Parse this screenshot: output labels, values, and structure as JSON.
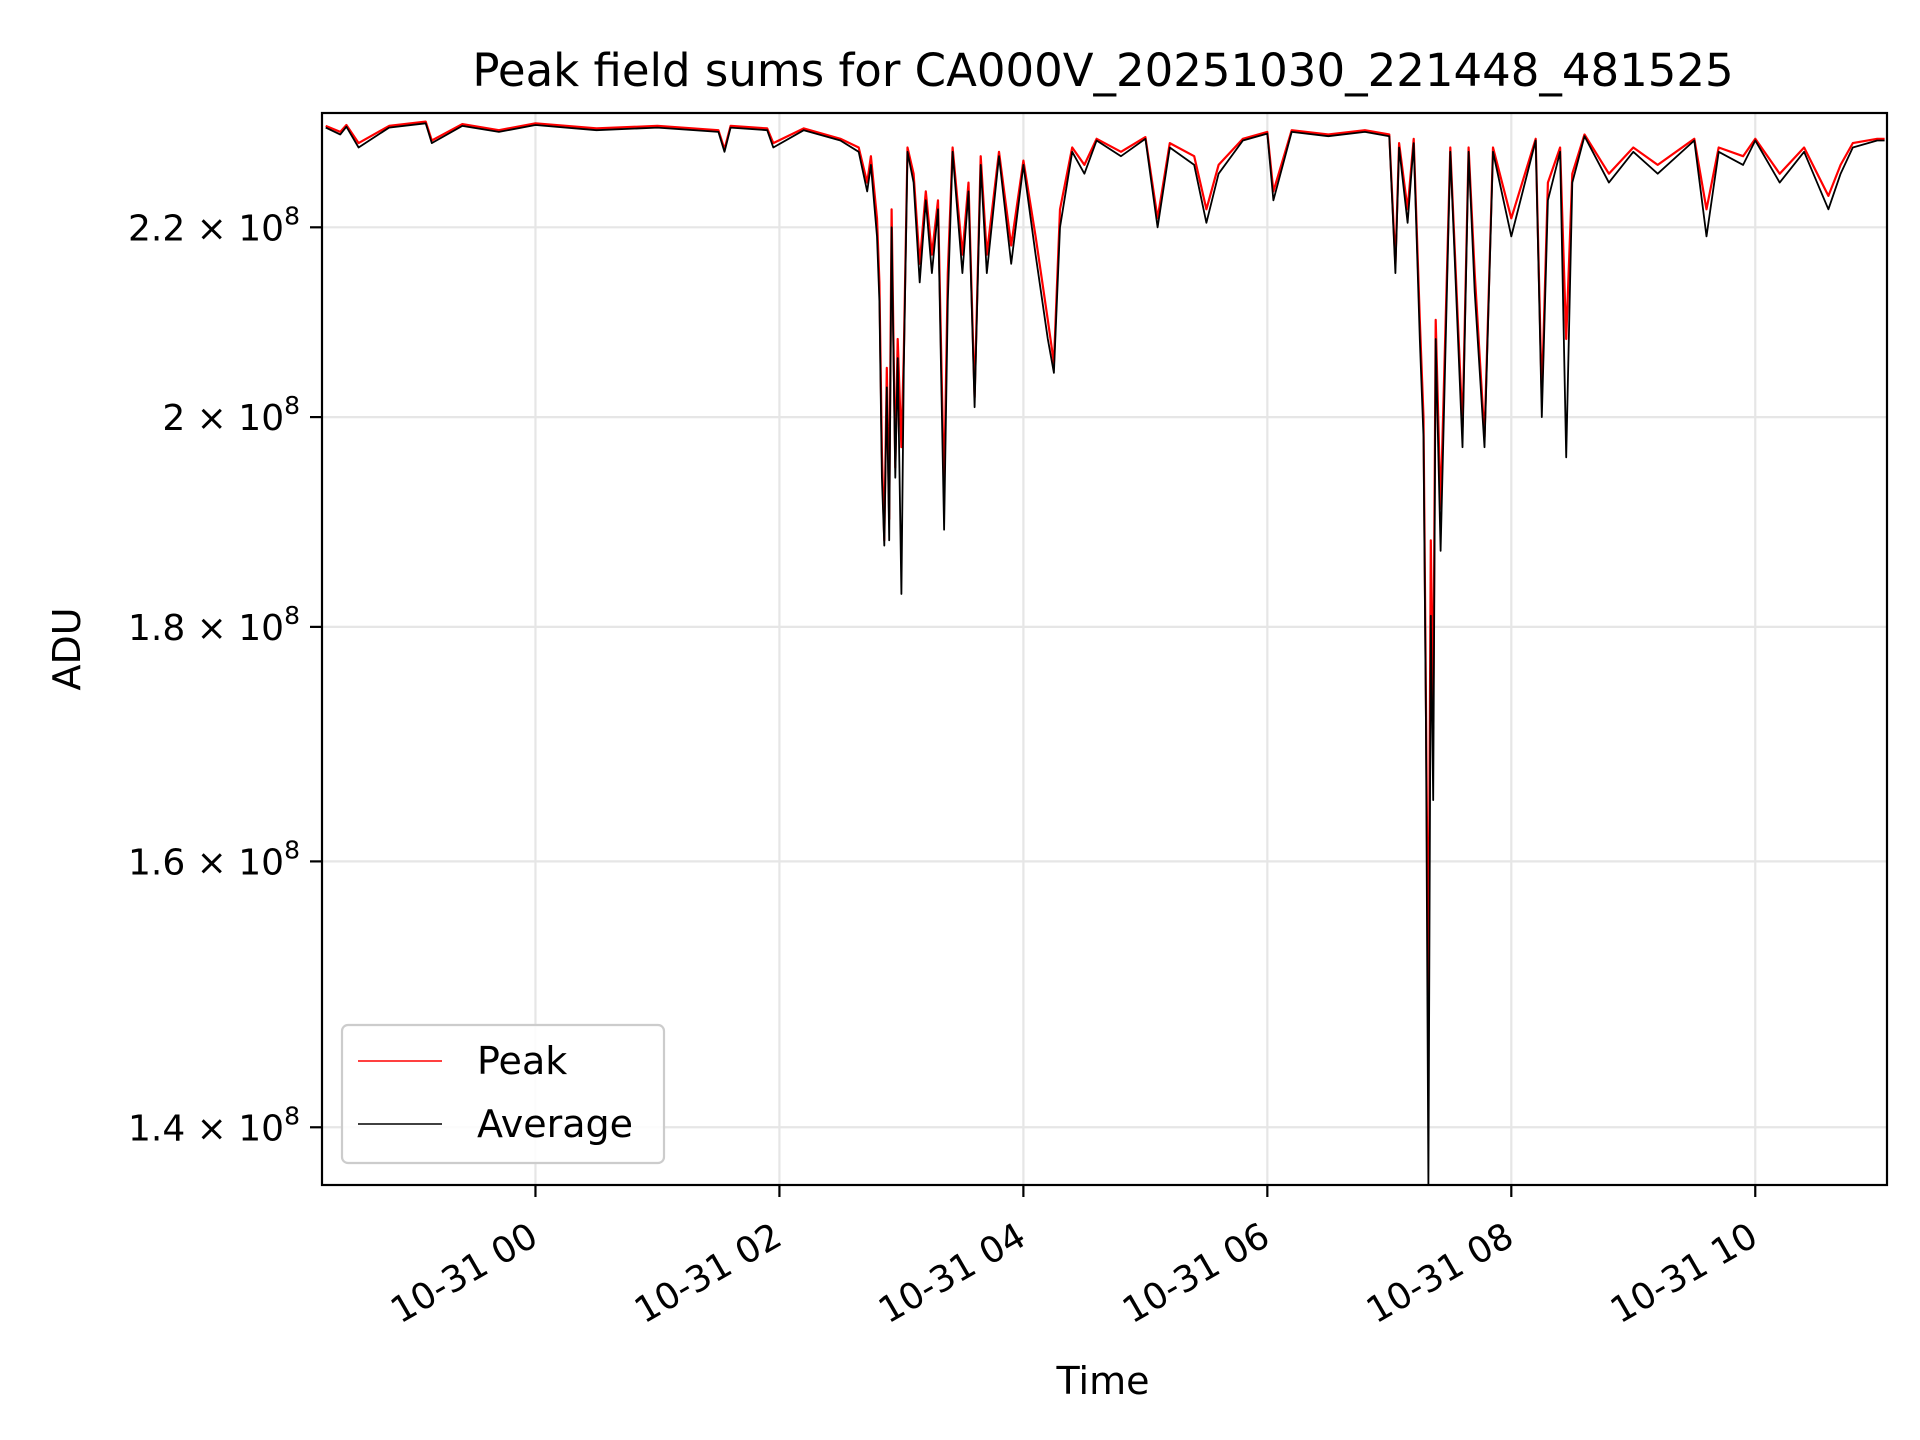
{
  "chart_data": {
    "type": "line",
    "title": "Peak field sums for CA000V_20251030_221448_481525",
    "xlabel": "Time",
    "ylabel": "ADU",
    "y_scale": "log",
    "xlim_hours": [
      -1.75,
      11.08
    ],
    "ylim": [
      136000000,
      233000000
    ],
    "grid": true,
    "legend_position": "lower-left",
    "x_ticks": [
      {
        "value_hours": 0,
        "label": "10-31 00"
      },
      {
        "value_hours": 2,
        "label": "10-31 02"
      },
      {
        "value_hours": 4,
        "label": "10-31 04"
      },
      {
        "value_hours": 6,
        "label": "10-31 06"
      },
      {
        "value_hours": 8,
        "label": "10-31 08"
      },
      {
        "value_hours": 10,
        "label": "10-31 10"
      }
    ],
    "y_ticks": [
      {
        "value": 140000000,
        "mantissa": "1.4",
        "exponent": "8"
      },
      {
        "value": 160000000,
        "mantissa": "1.6",
        "exponent": "8"
      },
      {
        "value": 180000000,
        "mantissa": "1.8",
        "exponent": "8"
      },
      {
        "value": 200000000,
        "mantissa": "2",
        "exponent": "8"
      },
      {
        "value": 220000000,
        "mantissa": "2.2",
        "exponent": "8"
      }
    ],
    "tick_times": "×",
    "tick_base": "10",
    "series": [
      {
        "name": "Peak",
        "color": "#ff0000",
        "x_hours": [
          -1.72,
          -1.6,
          -1.55,
          -1.45,
          -1.2,
          -0.9,
          -0.85,
          -0.6,
          -0.3,
          0,
          0.5,
          1.0,
          1.5,
          1.55,
          1.6,
          1.9,
          1.95,
          2.2,
          2.5,
          2.65,
          2.72,
          2.75,
          2.8,
          2.82,
          2.84,
          2.86,
          2.88,
          2.9,
          2.92,
          2.95,
          2.97,
          3.0,
          3.02,
          3.05,
          3.1,
          3.15,
          3.2,
          3.25,
          3.3,
          3.35,
          3.38,
          3.42,
          3.5,
          3.55,
          3.6,
          3.65,
          3.7,
          3.8,
          3.9,
          4.0,
          4.1,
          4.2,
          4.25,
          4.3,
          4.4,
          4.5,
          4.6,
          4.8,
          5.0,
          5.1,
          5.2,
          5.4,
          5.5,
          5.6,
          5.8,
          6.0,
          6.05,
          6.2,
          6.5,
          6.8,
          7.0,
          7.05,
          7.08,
          7.15,
          7.2,
          7.25,
          7.28,
          7.3,
          7.32,
          7.34,
          7.36,
          7.38,
          7.42,
          7.5,
          7.6,
          7.65,
          7.7,
          7.78,
          7.85,
          8.0,
          8.2,
          8.25,
          8.3,
          8.4,
          8.45,
          8.5,
          8.6,
          8.8,
          9.0,
          9.2,
          9.5,
          9.6,
          9.7,
          9.9,
          10.0,
          10.2,
          10.4,
          10.6,
          10.7,
          10.8,
          11.0,
          11.06
        ],
        "values": [
          231500000,
          230800000,
          231600000,
          229500000,
          231500000,
          232000000,
          229800000,
          231700000,
          231000000,
          231800000,
          231200000,
          231500000,
          231000000,
          228800000,
          231500000,
          231200000,
          229500000,
          231200000,
          230000000,
          229000000,
          225000000,
          228000000,
          221000000,
          214000000,
          196500000,
          188000000,
          205000000,
          190000000,
          222000000,
          195000000,
          208000000,
          197000000,
          206500000,
          229000000,
          226000000,
          216000000,
          224000000,
          217000000,
          223000000,
          192500000,
          215000000,
          229000000,
          217000000,
          225000000,
          202000000,
          228000000,
          217000000,
          228500000,
          218000000,
          227500000,
          219000000,
          210000000,
          205500000,
          222000000,
          229000000,
          227000000,
          230000000,
          228500000,
          230200000,
          221000000,
          229500000,
          228000000,
          222000000,
          227000000,
          230000000,
          230800000,
          224000000,
          231000000,
          230500000,
          231000000,
          230500000,
          216000000,
          229500000,
          222000000,
          230000000,
          210000000,
          200000000,
          174000000,
          149000000,
          188000000,
          172000000,
          210000000,
          191000000,
          229000000,
          199000000,
          229000000,
          215000000,
          198000000,
          229000000,
          221000000,
          230000000,
          202000000,
          225000000,
          229000000,
          208000000,
          226000000,
          230500000,
          226000000,
          229000000,
          227000000,
          230000000,
          222000000,
          229000000,
          228000000,
          230000000,
          226000000,
          229000000,
          223500000,
          227000000,
          229500000,
          230000000,
          230000000
        ]
      },
      {
        "name": "Average",
        "color": "#000000",
        "x_hours": [
          -1.72,
          -1.6,
          -1.55,
          -1.45,
          -1.2,
          -0.9,
          -0.85,
          -0.6,
          -0.3,
          0,
          0.5,
          1.0,
          1.5,
          1.55,
          1.6,
          1.9,
          1.95,
          2.2,
          2.5,
          2.65,
          2.72,
          2.75,
          2.8,
          2.82,
          2.84,
          2.86,
          2.88,
          2.9,
          2.92,
          2.95,
          2.97,
          3.0,
          3.02,
          3.05,
          3.1,
          3.15,
          3.2,
          3.25,
          3.3,
          3.35,
          3.38,
          3.42,
          3.5,
          3.55,
          3.6,
          3.65,
          3.7,
          3.8,
          3.9,
          4.0,
          4.1,
          4.2,
          4.25,
          4.3,
          4.4,
          4.5,
          4.6,
          4.8,
          5.0,
          5.1,
          5.2,
          5.4,
          5.5,
          5.6,
          5.8,
          6.0,
          6.05,
          6.2,
          6.5,
          6.8,
          7.0,
          7.05,
          7.08,
          7.15,
          7.2,
          7.25,
          7.28,
          7.3,
          7.32,
          7.34,
          7.36,
          7.38,
          7.42,
          7.5,
          7.6,
          7.65,
          7.7,
          7.78,
          7.85,
          8.0,
          8.2,
          8.25,
          8.3,
          8.4,
          8.45,
          8.5,
          8.6,
          8.8,
          9.0,
          9.2,
          9.5,
          9.6,
          9.7,
          9.9,
          10.0,
          10.2,
          10.4,
          10.6,
          10.7,
          10.8,
          11.0,
          11.06
        ],
        "values": [
          231300000,
          230500000,
          231400000,
          229000000,
          231300000,
          231800000,
          229500000,
          231500000,
          230800000,
          231600000,
          231000000,
          231300000,
          230800000,
          228500000,
          231300000,
          231000000,
          229000000,
          231000000,
          229800000,
          228500000,
          224000000,
          227000000,
          219000000,
          212000000,
          194000000,
          187500000,
          203000000,
          188000000,
          220000000,
          194000000,
          206000000,
          183000000,
          205000000,
          228500000,
          225000000,
          214000000,
          223000000,
          215000000,
          222000000,
          189000000,
          212000000,
          228500000,
          215000000,
          224000000,
          201000000,
          227000000,
          215000000,
          228000000,
          216000000,
          227000000,
          217000000,
          208000000,
          204500000,
          220000000,
          228500000,
          226000000,
          229800000,
          228000000,
          230000000,
          220000000,
          229000000,
          227000000,
          220500000,
          226000000,
          229800000,
          230600000,
          223000000,
          230800000,
          230300000,
          230800000,
          230300000,
          215000000,
          229000000,
          220500000,
          229500000,
          208000000,
          198000000,
          172000000,
          136000000,
          181000000,
          165000000,
          208000000,
          187000000,
          228500000,
          197000000,
          228500000,
          213000000,
          197000000,
          228500000,
          219000000,
          229800000,
          200000000,
          223000000,
          228500000,
          196000000,
          225000000,
          230300000,
          225000000,
          228500000,
          226000000,
          229800000,
          219000000,
          228500000,
          227000000,
          229800000,
          225000000,
          228500000,
          222000000,
          226000000,
          229000000,
          229800000,
          229800000
        ]
      }
    ]
  }
}
